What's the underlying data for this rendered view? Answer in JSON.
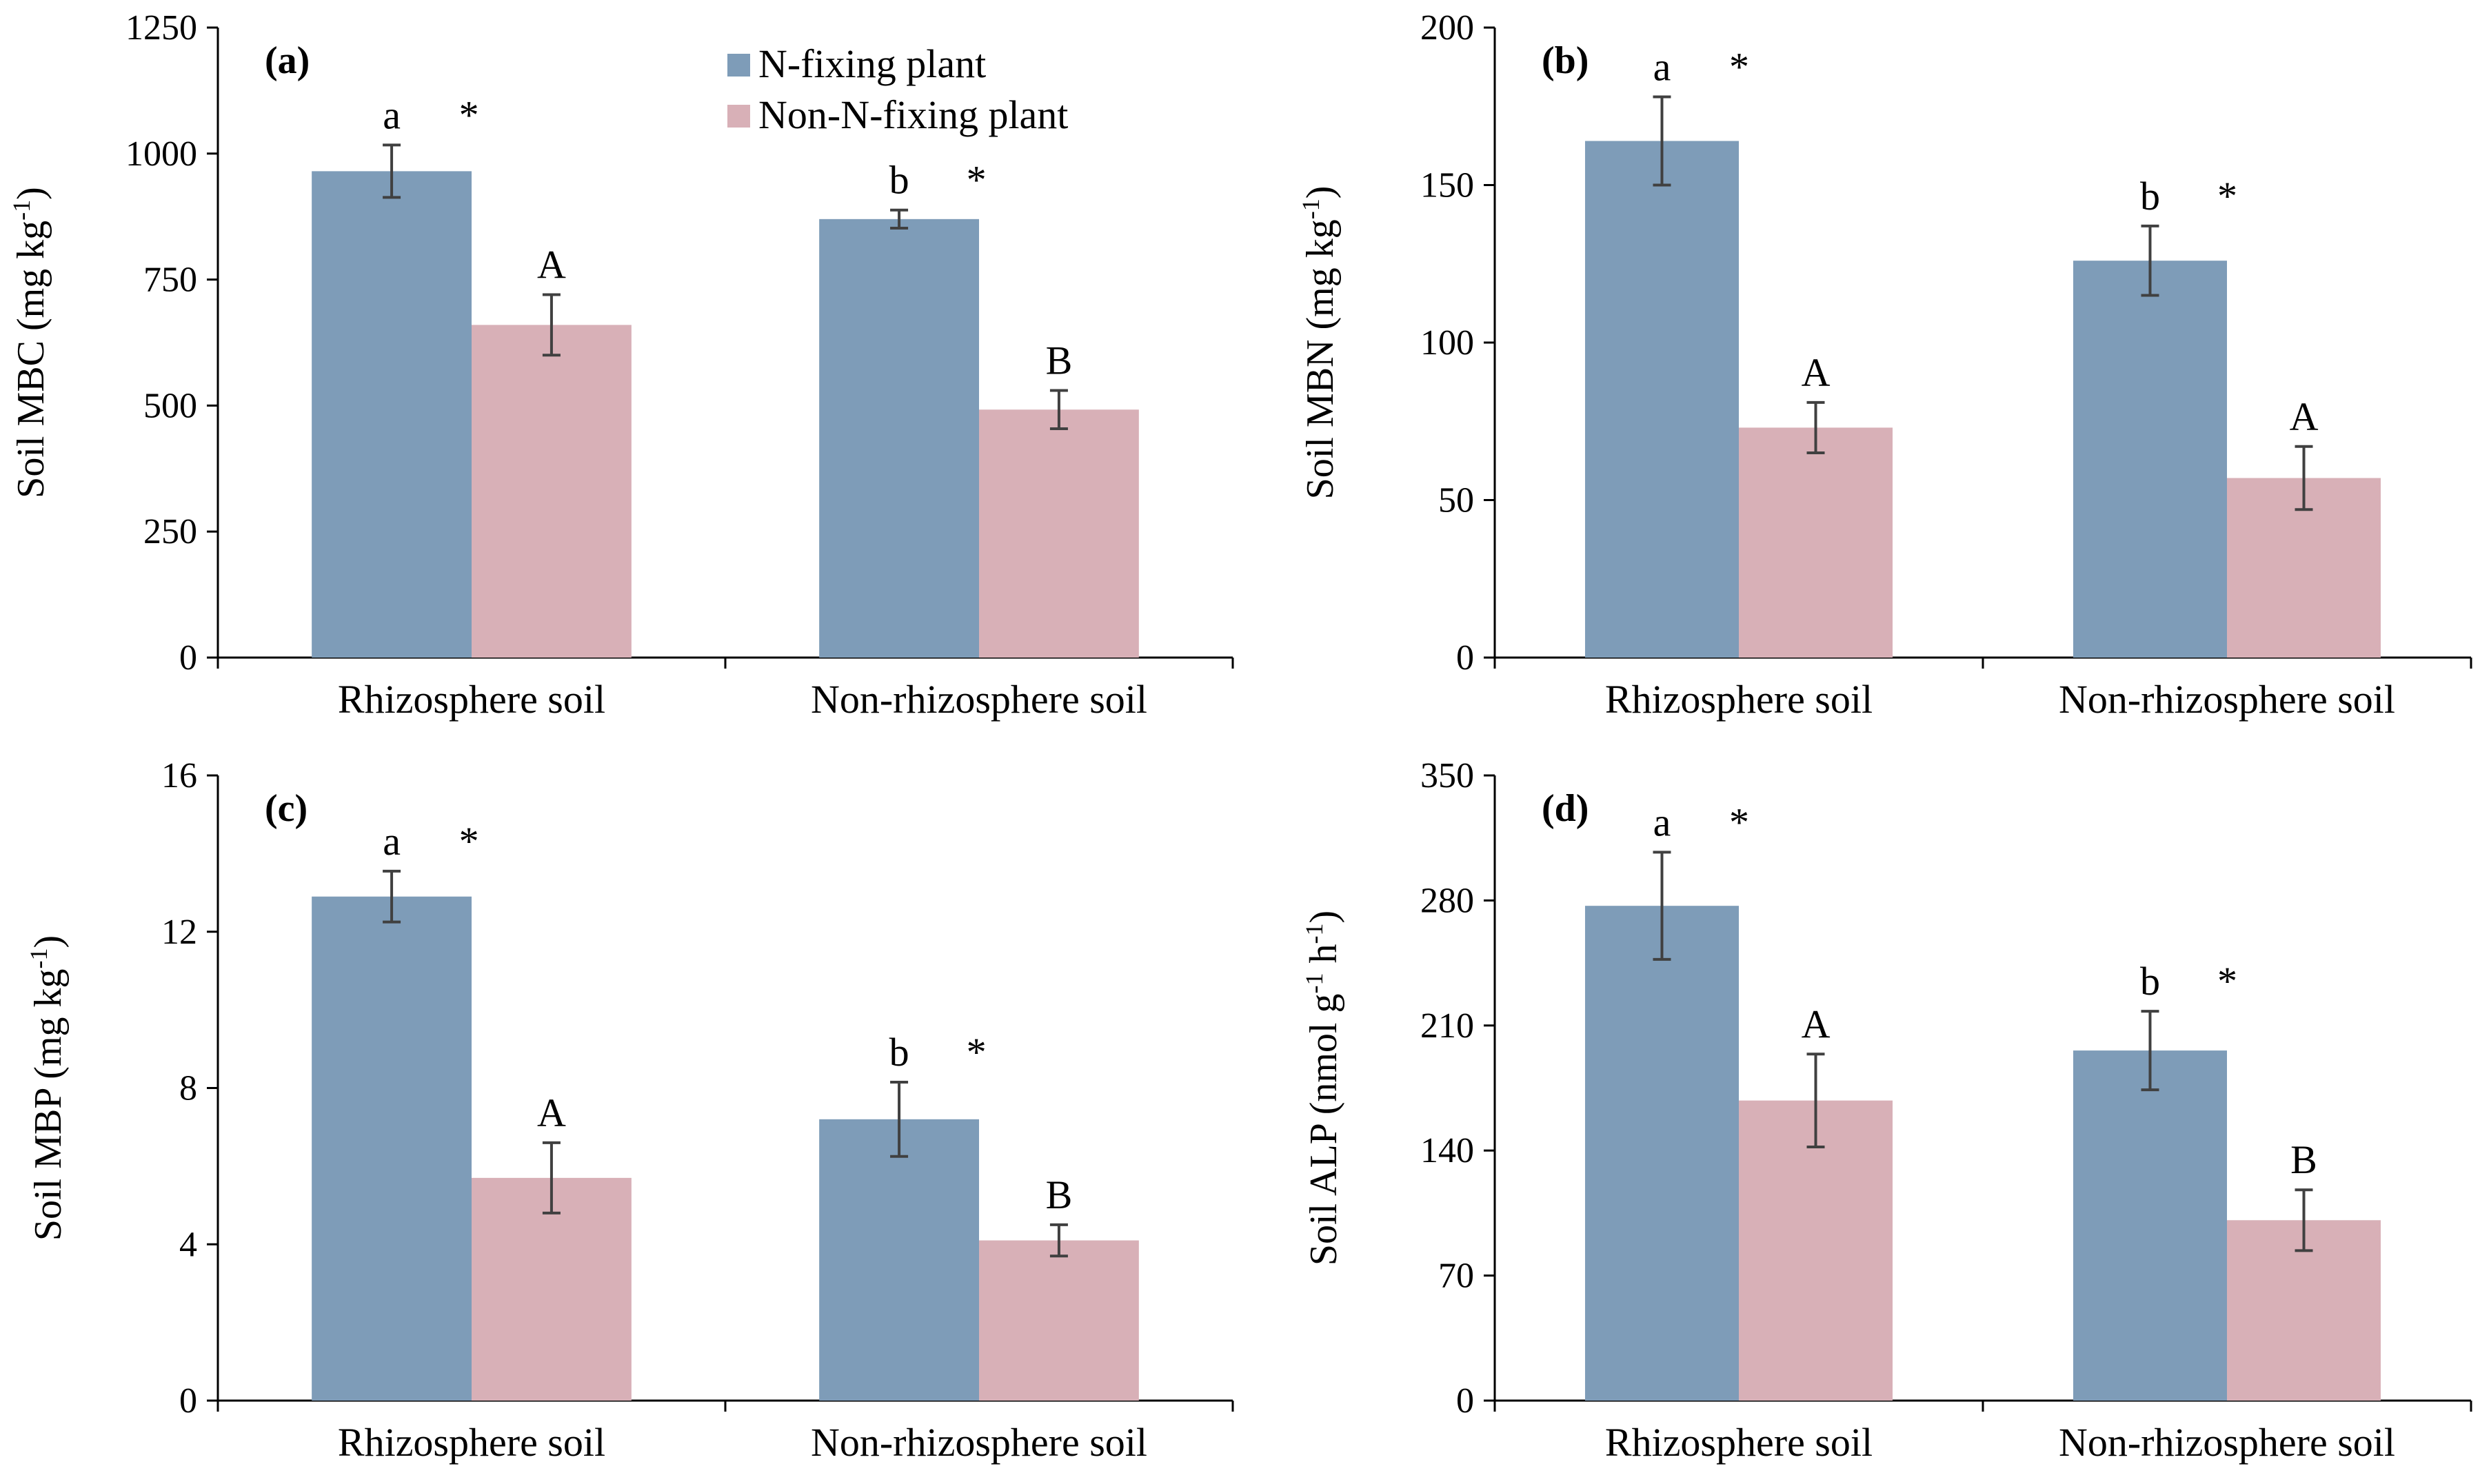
{
  "legend": {
    "series": [
      {
        "name": "N-fixing plant",
        "color": "#7e9cb8"
      },
      {
        "name": "Non-N-fixing plant",
        "color": "#d8b0b7"
      }
    ]
  },
  "chart_data": [
    {
      "type": "bar",
      "panel_label": "(a)",
      "title": "",
      "ylabel": "Soil MBC (mg kg",
      "ylabel_sup": "-1",
      "ylabel_end": ")",
      "categories": [
        "Rhizosphere soil",
        "Non-rhizosphere soil"
      ],
      "ylim": [
        0,
        1250
      ],
      "yticks": [
        0,
        250,
        500,
        750,
        1000,
        1250
      ],
      "series": [
        {
          "name": "N-fixing plant",
          "values": [
            965,
            870
          ],
          "errors": [
            52,
            18
          ],
          "letters": [
            "a",
            "b"
          ],
          "stars": [
            "*",
            "*"
          ]
        },
        {
          "name": "Non-N-fixing plant",
          "values": [
            660,
            492
          ],
          "errors": [
            60,
            38
          ],
          "letters": [
            "A",
            "B"
          ]
        }
      ]
    },
    {
      "type": "bar",
      "panel_label": "(b)",
      "title": "",
      "ylabel": "Soil MBN (mg kg",
      "ylabel_sup": "-1",
      "ylabel_end": ")",
      "categories": [
        "Rhizosphere soil",
        "Non-rhizosphere soil"
      ],
      "ylim": [
        0,
        200
      ],
      "yticks": [
        0,
        50,
        100,
        150,
        200
      ],
      "series": [
        {
          "name": "N-fixing plant",
          "values": [
            164,
            126
          ],
          "errors": [
            14,
            11
          ],
          "letters": [
            "a",
            "b"
          ],
          "stars": [
            "*",
            "*"
          ]
        },
        {
          "name": "Non-N-fixing plant",
          "values": [
            73,
            57
          ],
          "errors": [
            8,
            10
          ],
          "letters": [
            "A",
            "A"
          ]
        }
      ]
    },
    {
      "type": "bar",
      "panel_label": "(c)",
      "title": "",
      "ylabel": "Soil MBP (mg kg",
      "ylabel_sup": "-1",
      "ylabel_end": ")",
      "categories": [
        "Rhizosphere soil",
        "Non-rhizosphere soil"
      ],
      "ylim": [
        0,
        16
      ],
      "yticks": [
        0,
        4,
        8,
        12,
        16
      ],
      "series": [
        {
          "name": "N-fixing plant",
          "values": [
            12.9,
            7.2
          ],
          "errors": [
            0.65,
            0.95
          ],
          "letters": [
            "a",
            "b"
          ],
          "stars": [
            "*",
            "*"
          ]
        },
        {
          "name": "Non-N-fixing plant",
          "values": [
            5.7,
            4.1
          ],
          "errors": [
            0.9,
            0.4
          ],
          "letters": [
            "A",
            "B"
          ]
        }
      ]
    },
    {
      "type": "bar",
      "panel_label": "(d)",
      "title": "",
      "ylabel": "Soil ALP (nmol g",
      "ylabel_sup": "-1",
      "ylabel_mid": " h",
      "ylabel_sup2": "-1",
      "ylabel_end": ")",
      "categories": [
        "Rhizosphere soil",
        "Non-rhizosphere soil"
      ],
      "ylim": [
        0,
        350
      ],
      "yticks": [
        0,
        70,
        140,
        210,
        280,
        350
      ],
      "series": [
        {
          "name": "N-fixing plant",
          "values": [
            277,
            196
          ],
          "errors": [
            30,
            22
          ],
          "letters": [
            "a",
            "b"
          ],
          "stars": [
            "*",
            "*"
          ]
        },
        {
          "name": "Non-N-fixing plant",
          "values": [
            168,
            101
          ],
          "errors": [
            26,
            17
          ],
          "letters": [
            "A",
            "B"
          ]
        }
      ]
    }
  ]
}
